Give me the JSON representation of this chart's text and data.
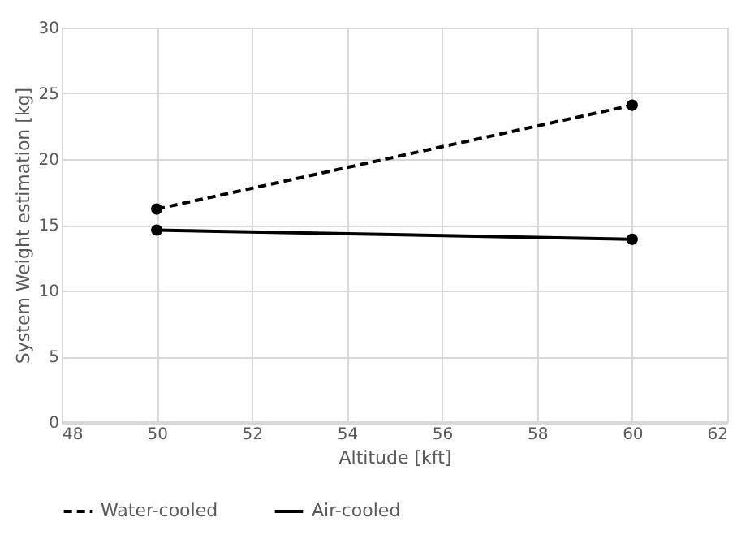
{
  "chart_data": {
    "type": "line",
    "xlabel": "Altitude [kft]",
    "ylabel": "System Weight estimation [kg]",
    "x": [
      50,
      60
    ],
    "series": [
      {
        "name": "Water-cooled",
        "color": "#000000",
        "line_style": "dashed",
        "values": [
          16.2,
          24.1
        ]
      },
      {
        "name": "Air-cooled",
        "color": "#000000",
        "line_style": "solid",
        "values": [
          14.6,
          13.9
        ]
      }
    ],
    "xlim": [
      48,
      62
    ],
    "xticks": [
      48,
      50,
      52,
      54,
      56,
      58,
      60,
      62
    ],
    "ylim": [
      0,
      30
    ],
    "yticks": [
      0,
      5,
      10,
      15,
      20,
      25,
      30
    ],
    "grid": true,
    "legend": "bottom",
    "marker": "circle"
  }
}
